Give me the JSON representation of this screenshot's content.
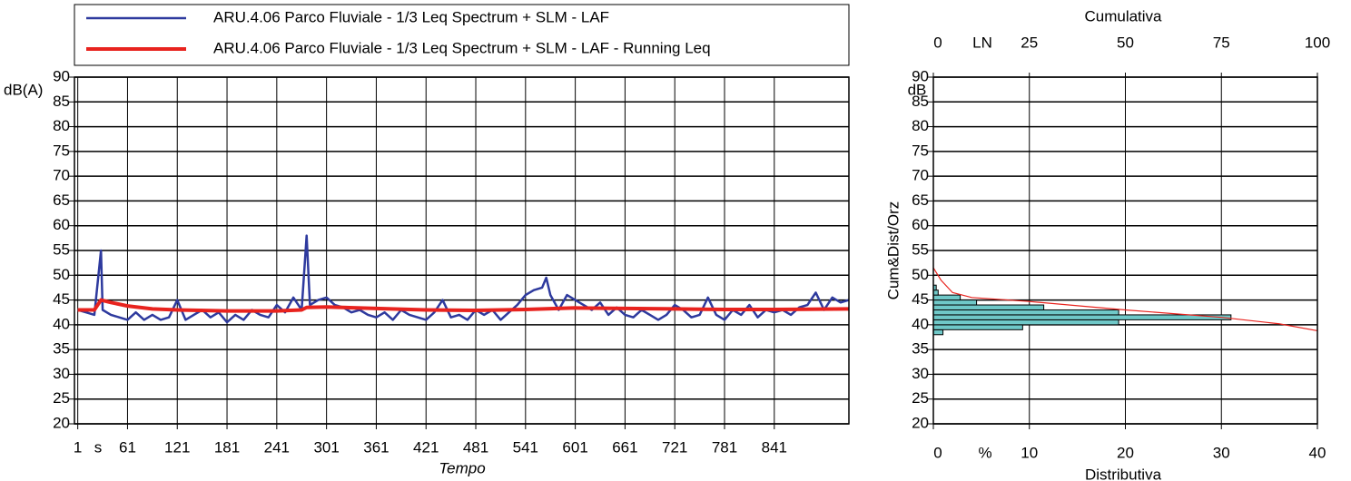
{
  "chart_data": [
    {
      "type": "line",
      "x_label": "Tempo",
      "x_unit": "s",
      "y_label": "dB(A)",
      "xlim": [
        -3,
        931
      ],
      "xticks": [
        1,
        61,
        121,
        181,
        241,
        301,
        361,
        421,
        481,
        541,
        601,
        661,
        721,
        781,
        841
      ],
      "ylim": [
        20,
        90
      ],
      "yticks": [
        20,
        25,
        30,
        35,
        40,
        45,
        50,
        55,
        60,
        65,
        70,
        75,
        80,
        85,
        90
      ],
      "grid": true,
      "series": [
        {
          "name": "ARU.4.06 Parco Fluviale - 1/3 Leq Spectrum + SLM - LAF",
          "color": "#2e3a9e",
          "x": [
            1,
            11,
            21,
            29,
            31,
            41,
            51,
            61,
            71,
            81,
            91,
            101,
            111,
            121,
            131,
            141,
            151,
            161,
            171,
            181,
            191,
            201,
            211,
            221,
            231,
            241,
            251,
            261,
            271,
            277,
            281,
            291,
            301,
            311,
            321,
            331,
            341,
            351,
            361,
            371,
            381,
            391,
            401,
            411,
            421,
            431,
            441,
            451,
            461,
            471,
            481,
            491,
            501,
            511,
            521,
            531,
            541,
            551,
            561,
            566,
            571,
            581,
            591,
            601,
            611,
            621,
            631,
            641,
            651,
            661,
            671,
            681,
            691,
            701,
            711,
            721,
            731,
            741,
            751,
            761,
            771,
            781,
            791,
            801,
            811,
            821,
            831,
            841,
            851,
            861,
            871,
            881,
            891,
            901,
            911,
            921,
            931
          ],
          "values": [
            43,
            42.5,
            42,
            55,
            43,
            42,
            41.5,
            41,
            42.5,
            41,
            42,
            41,
            41.5,
            45,
            41,
            42,
            43,
            41.5,
            42.5,
            40.5,
            42,
            41,
            43,
            42,
            41.5,
            44,
            42.5,
            45.5,
            43,
            58,
            44,
            45,
            45.5,
            44,
            43.5,
            42.5,
            43,
            42,
            41.5,
            42.5,
            41,
            43,
            42,
            41.5,
            41,
            42.5,
            45,
            41.5,
            42,
            41,
            43,
            42,
            43,
            41,
            42.5,
            44,
            46,
            47,
            47.5,
            49.5,
            46,
            43,
            46,
            45,
            44,
            43,
            44.5,
            42,
            43.5,
            42,
            41.5,
            43,
            42,
            41,
            42,
            44,
            43,
            41.5,
            42,
            45.5,
            42,
            41,
            43,
            42,
            44,
            41.5,
            43,
            42.5,
            43,
            42,
            43.5,
            44,
            46.5,
            43,
            45.5,
            44.5,
            45
          ]
        },
        {
          "name": "ARU.4.06 Parco Fluviale - 1/3 Leq Spectrum + SLM - LAF - Running Leq",
          "color": "#e8231e",
          "x": [
            1,
            21,
            29,
            41,
            61,
            91,
            121,
            181,
            241,
            271,
            277,
            301,
            361,
            421,
            481,
            541,
            601,
            661,
            721,
            781,
            841,
            931
          ],
          "values": [
            43,
            43,
            45,
            44.5,
            43.8,
            43.2,
            43,
            42.8,
            42.8,
            43,
            43.5,
            43.6,
            43.3,
            43,
            42.9,
            43.1,
            43.4,
            43.3,
            43.2,
            43.1,
            43.1,
            43.2
          ]
        }
      ]
    },
    {
      "type": "histogram",
      "orientation": "horizontal",
      "y_label": "Cum&Dist/Orz",
      "y_unit": "dB",
      "ylim": [
        20,
        90
      ],
      "yticks": [
        20,
        25,
        30,
        35,
        40,
        45,
        50,
        55,
        60,
        65,
        70,
        75,
        80,
        85,
        90
      ],
      "x_label": "Distributiva",
      "x_unit": "%",
      "xlim": [
        0,
        40
      ],
      "xticks": [
        0,
        10,
        20,
        30,
        40
      ],
      "x2_label": "Cumulativa",
      "x2_unit": "LN",
      "x2lim": [
        0,
        100
      ],
      "x2ticks": [
        0,
        25,
        50,
        75,
        100
      ],
      "grid": true,
      "color": "#6fc8c8",
      "bins": [
        38,
        39,
        40,
        41,
        42,
        43,
        44,
        45,
        46,
        47,
        48
      ],
      "values": [
        1,
        9.3,
        19.3,
        31,
        19.3,
        11.5,
        4.5,
        2.8,
        0.5,
        0.3
      ],
      "cumulative": {
        "color": "#e8231e",
        "x": [
          0,
          2,
          5,
          10,
          25,
          50,
          75,
          90,
          100
        ],
        "values": [
          51.5,
          49,
          46.5,
          45.5,
          44.7,
          43,
          41.5,
          40.2,
          38.8
        ]
      }
    }
  ]
}
